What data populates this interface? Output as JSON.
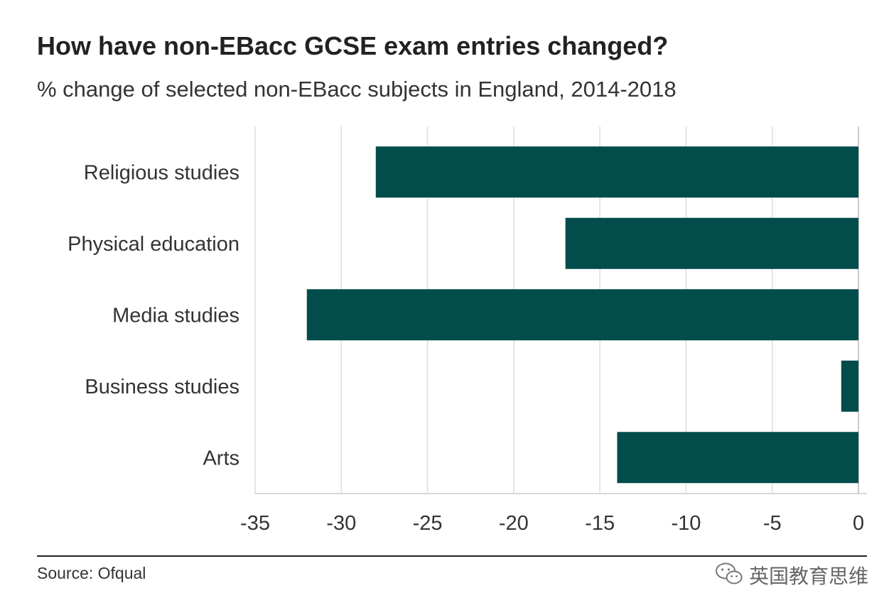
{
  "header": {
    "title": "How have non-EBacc GCSE exam entries changed?",
    "subtitle": "% change of selected non-EBacc subjects in England, 2014-2018"
  },
  "footer": {
    "source": "Source: Ofqual",
    "watermark_text": "英国教育思维",
    "watermark_icon": "wechat-icon"
  },
  "colors": {
    "bar": "#034c4c",
    "grid": "#dddddd",
    "axis": "#cccccc",
    "rule": "#222222"
  },
  "chart_data": {
    "type": "bar",
    "orientation": "horizontal",
    "title": "How have non-EBacc GCSE exam entries changed?",
    "subtitle": "% change of selected non-EBacc subjects in England, 2014-2018",
    "categories": [
      "Religious studies",
      "Physical education",
      "Media studies",
      "Business studies",
      "Arts"
    ],
    "values": [
      -28,
      -17,
      -32,
      -1,
      -14
    ],
    "xlim": [
      -35,
      0
    ],
    "xticks": [
      -35,
      -30,
      -25,
      -20,
      -15,
      -10,
      -5,
      0
    ],
    "xtick_labels": [
      "-35",
      "-30",
      "-25",
      "-20",
      "-15",
      "-10",
      "-5",
      "0"
    ],
    "xlabel": "",
    "ylabel": "",
    "grid": "vertical",
    "legend": "none"
  }
}
